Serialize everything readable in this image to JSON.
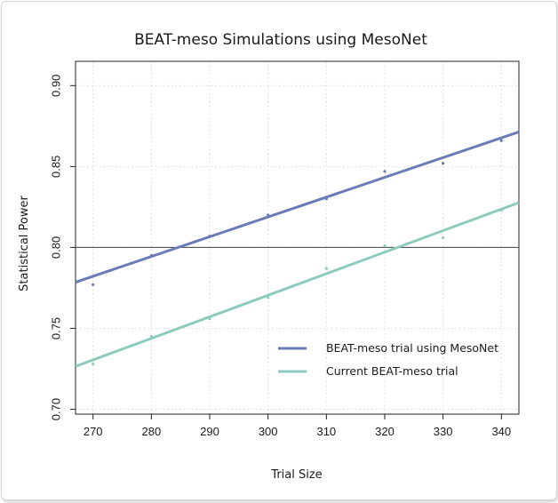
{
  "chart_data": {
    "type": "line",
    "title": "BEAT-meso Simulations using MesoNet",
    "xlabel": "Trial Size",
    "ylabel": "Statistical Power",
    "xlim": [
      267,
      343
    ],
    "ylim": [
      0.697,
      0.915
    ],
    "x_ticks": [
      270,
      280,
      290,
      300,
      310,
      320,
      330,
      340
    ],
    "y_ticks": [
      0.7,
      0.75,
      0.8,
      0.85,
      0.9
    ],
    "x_tick_labels": [
      "270",
      "280",
      "290",
      "300",
      "310",
      "320",
      "330",
      "340"
    ],
    "y_tick_labels": [
      "0.70",
      "0.75",
      "0.80",
      "0.85",
      "0.90"
    ],
    "grid": true,
    "reference_line": 0.8,
    "legend_position": "bottom-right",
    "x": [
      270,
      280,
      290,
      300,
      310,
      320,
      330,
      340
    ],
    "series": [
      {
        "name": "BEAT-meso trial using MesoNet",
        "color": "#6a7bb8",
        "points": [
          0.777,
          0.795,
          0.807,
          0.82,
          0.83,
          0.847,
          0.852,
          0.866
        ],
        "fit": [
          [
            267,
            0.7785
          ],
          [
            343,
            0.8714
          ]
        ]
      },
      {
        "name": "Current BEAT-meso trial",
        "color": "#8dcbbd",
        "points": [
          0.728,
          0.745,
          0.756,
          0.769,
          0.787,
          0.801,
          0.806,
          0.823
        ],
        "fit": [
          [
            267,
            0.7265
          ],
          [
            343,
            0.8277
          ]
        ]
      }
    ]
  }
}
